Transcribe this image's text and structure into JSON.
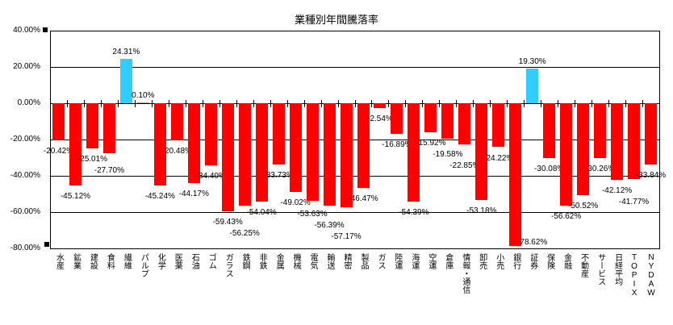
{
  "chart_data": {
    "type": "bar",
    "title": "業種別年間騰落率",
    "categories": [
      "水産",
      "鉱業",
      "建設",
      "食料",
      "繊維",
      "パルプ",
      "化学",
      "医薬",
      "石油",
      "ゴム",
      "ガラス",
      "鉄鋼",
      "非鉄",
      "金属",
      "機械",
      "電気",
      "輸送",
      "精密",
      "製品",
      "ガス",
      "陸運",
      "海運",
      "空運",
      "倉庫",
      "情報・通信",
      "卸売",
      "小売",
      "銀行",
      "証券",
      "保険",
      "金融",
      "不動産",
      "サービス",
      "日経平均",
      "TOPIX",
      "NYDAW"
    ],
    "values": [
      -20.42,
      -45.12,
      -25.01,
      -27.7,
      24.31,
      0.1,
      -45.24,
      -20.48,
      -44.17,
      -34.4,
      -59.43,
      -56.25,
      -54.04,
      -33.73,
      -49.02,
      -53.63,
      -56.39,
      -57.17,
      -46.47,
      -2.54,
      -16.89,
      -54.39,
      -15.92,
      -19.58,
      -22.85,
      -53.18,
      -24.22,
      -78.62,
      19.3,
      -30.08,
      -56.62,
      -50.52,
      -30.26,
      -42.12,
      -41.77,
      -33.84
    ],
    "data_label_suffix": "%",
    "y_ticks": [
      "40.00%",
      "20.00%",
      "0.00%",
      "-20.00%",
      "-40.00%",
      "-60.00%",
      "-80.00%"
    ],
    "ylim": [
      -80,
      40
    ],
    "y_step": 20,
    "grid": true,
    "legend": "none",
    "colors": {
      "positive": "#33CCFF",
      "negative": "#FF0000",
      "gridline": "#000000",
      "axis": "#000000",
      "background": "#FFFFFF"
    }
  }
}
